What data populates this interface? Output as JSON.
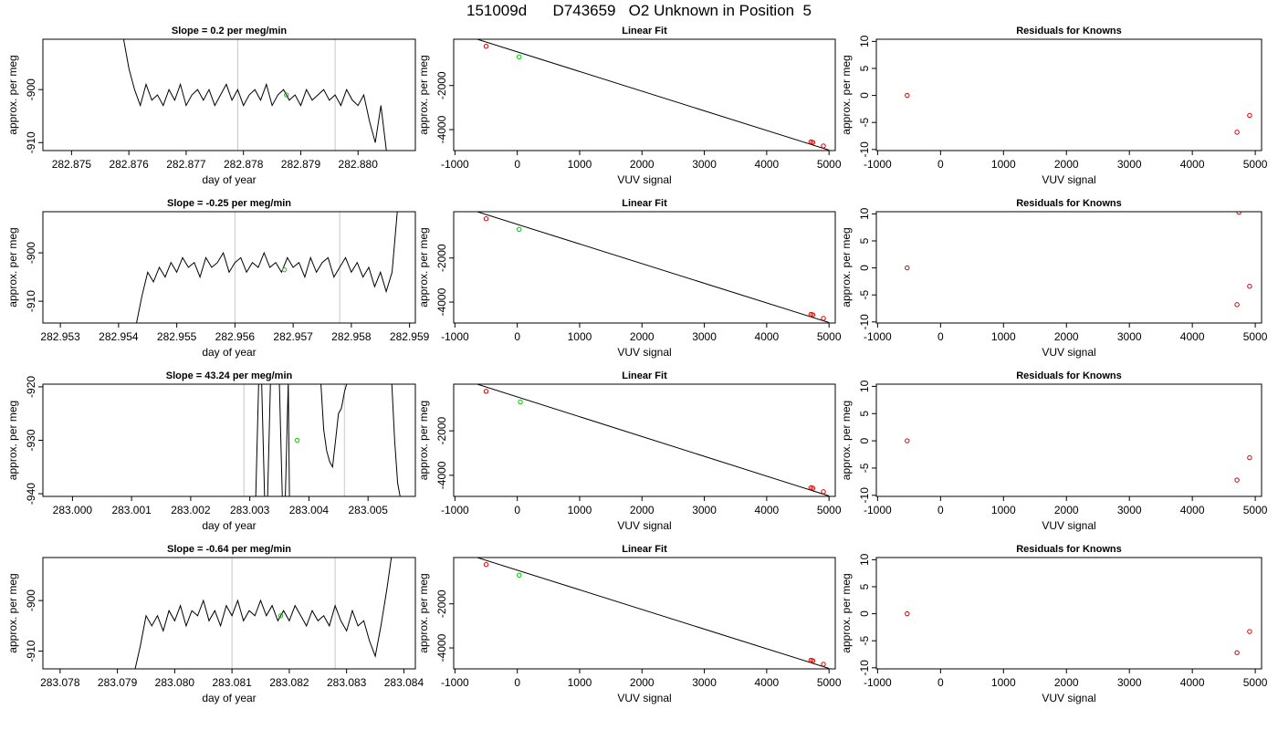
{
  "page": {
    "title": "151009d      D743659   O2 Unknown in Position  5"
  },
  "chart_data": [
    {
      "type": "line",
      "title": "Slope =  0.2  per meg/min",
      "xlabel": "day of year",
      "ylabel": "approx. per meg",
      "xlim": [
        282.8745,
        282.881
      ],
      "ylim": [
        -911.5,
        -890.5
      ],
      "xticks": [
        282.875,
        282.876,
        282.877,
        282.878,
        282.879,
        282.88
      ],
      "xtick_labels": [
        "282.875",
        "282.876",
        "282.877",
        "282.878",
        "282.879",
        "282.880"
      ],
      "yticks": [
        -900,
        -910
      ],
      "ytick_labels": [
        "-900",
        "-910"
      ],
      "vlines": [
        282.8779,
        282.8796
      ],
      "series": [
        {
          "x": [
            282.8759,
            282.876,
            282.8761,
            282.8762,
            282.8763,
            282.8764,
            282.8765,
            282.8766,
            282.8767,
            282.8768,
            282.8769,
            282.877,
            282.8771,
            282.8772,
            282.8773,
            282.8774,
            282.8775,
            282.8776,
            282.8777,
            282.8778,
            282.8779,
            282.878,
            282.8781,
            282.8782,
            282.8783,
            282.8784,
            282.8785,
            282.8786,
            282.8787,
            282.8788,
            282.8789,
            282.879,
            282.8791,
            282.8792,
            282.8793,
            282.8794,
            282.8795,
            282.8796,
            282.8797,
            282.8798,
            282.8799,
            282.88,
            282.8801,
            282.8802,
            282.8803,
            282.8804,
            282.8805
          ],
          "y": [
            -890,
            -896,
            -900,
            -903,
            -899,
            -902,
            -901,
            -903,
            -900,
            -902,
            -899,
            -903,
            -901,
            -900,
            -902,
            -900,
            -903,
            -901,
            -899,
            -902,
            -900,
            -903,
            -901,
            -900,
            -902,
            -899,
            -903,
            -901,
            -900,
            -902,
            -901,
            -903,
            -900,
            -902,
            -901,
            -900,
            -902,
            -901,
            -903,
            -900,
            -902,
            -903,
            -901,
            -906,
            -910,
            -903,
            -912
          ]
        }
      ],
      "points": [
        {
          "x": 282.87875,
          "y": -901,
          "color": "#00cc00"
        }
      ]
    },
    {
      "type": "scatter",
      "title": "Linear Fit",
      "xlabel": "VUV signal",
      "ylabel": "approx. per meg",
      "xlim": [
        -1020,
        5100
      ],
      "ylim": [
        -4950,
        100
      ],
      "xticks": [
        -1000,
        0,
        1000,
        2000,
        3000,
        4000,
        5000
      ],
      "xtick_labels": [
        "-1000",
        "0",
        "1000",
        "2000",
        "3000",
        "4000",
        "5000"
      ],
      "yticks": [
        -2000,
        -4000
      ],
      "ytick_labels": [
        "-2000",
        "-4000"
      ],
      "fit_line": [
        [
          -800,
          240
        ],
        [
          5000,
          -4930
        ]
      ],
      "points": [
        {
          "x": -500,
          "y": -220,
          "color": "#cc0000"
        },
        {
          "x": 30,
          "y": -700,
          "color": "#00cc00"
        },
        {
          "x": 4710,
          "y": -4560,
          "color": "#cc0000"
        },
        {
          "x": 4740,
          "y": -4580,
          "color": "#cc0000"
        },
        {
          "x": 4910,
          "y": -4740,
          "color": "#cc0000"
        }
      ]
    },
    {
      "type": "scatter",
      "title": "Residuals for Knowns",
      "xlabel": "VUV signal",
      "ylabel": "approx. per meg",
      "xlim": [
        -1020,
        5100
      ],
      "ylim": [
        -10.2,
        10.4
      ],
      "xticks": [
        -1000,
        0,
        1000,
        2000,
        3000,
        4000,
        5000
      ],
      "xtick_labels": [
        "-1000",
        "0",
        "1000",
        "2000",
        "3000",
        "4000",
        "5000"
      ],
      "yticks": [
        10,
        5,
        0,
        -5,
        -10
      ],
      "ytick_labels": [
        "10",
        "5",
        "0",
        "-5",
        "-10"
      ],
      "points": [
        {
          "x": -530,
          "y": 0,
          "color": "#cc0000"
        },
        {
          "x": 4710,
          "y": -6.8,
          "color": "#cc0000"
        },
        {
          "x": 4910,
          "y": -3.7,
          "color": "#cc0000"
        }
      ]
    },
    {
      "type": "line",
      "title": "Slope =  -0.25  per meg/min",
      "xlabel": "day of year",
      "ylabel": "approx. per meg",
      "xlim": [
        282.9527,
        282.9591
      ],
      "ylim": [
        -914.5,
        -891.5
      ],
      "xticks": [
        282.953,
        282.954,
        282.955,
        282.956,
        282.957,
        282.958,
        282.959
      ],
      "xtick_labels": [
        "282.953",
        "282.954",
        "282.955",
        "282.956",
        "282.957",
        "282.958",
        "282.959"
      ],
      "yticks": [
        -900,
        -910
      ],
      "ytick_labels": [
        "-900",
        "-910"
      ],
      "vlines": [
        282.956,
        282.9578
      ],
      "series": [
        {
          "x": [
            282.9543,
            282.9544,
            282.9545,
            282.9546,
            282.9547,
            282.9548,
            282.9549,
            282.955,
            282.9551,
            282.9552,
            282.9553,
            282.9554,
            282.9555,
            282.9556,
            282.9557,
            282.9558,
            282.9559,
            282.956,
            282.9561,
            282.9562,
            282.9563,
            282.9564,
            282.9565,
            282.9566,
            282.9567,
            282.9568,
            282.9569,
            282.957,
            282.9571,
            282.9572,
            282.9573,
            282.9574,
            282.9575,
            282.9576,
            282.9577,
            282.9578,
            282.9579,
            282.958,
            282.9581,
            282.9582,
            282.9583,
            282.9584,
            282.9585,
            282.9586,
            282.9587,
            282.9588
          ],
          "y": [
            -915,
            -909,
            -904,
            -906,
            -903,
            -905,
            -902,
            -904,
            -901,
            -903,
            -902,
            -905,
            -901,
            -903,
            -902,
            -900,
            -904,
            -902,
            -901,
            -904,
            -902,
            -903,
            -900,
            -903,
            -902,
            -904,
            -901,
            -903,
            -902,
            -905,
            -901,
            -904,
            -902,
            -901,
            -905,
            -903,
            -901,
            -904,
            -902,
            -905,
            -903,
            -907,
            -904,
            -908,
            -904,
            -890
          ]
        }
      ],
      "points": [
        {
          "x": 282.95685,
          "y": -903.5,
          "color": "#00cc00"
        }
      ]
    },
    {
      "type": "scatter",
      "title": "Linear Fit",
      "xlabel": "VUV signal",
      "ylabel": "approx. per meg",
      "xlim": [
        -1020,
        5100
      ],
      "ylim": [
        -4950,
        100
      ],
      "xticks": [
        -1000,
        0,
        1000,
        2000,
        3000,
        4000,
        5000
      ],
      "xtick_labels": [
        "-1000",
        "0",
        "1000",
        "2000",
        "3000",
        "4000",
        "5000"
      ],
      "yticks": [
        -2000,
        -4000
      ],
      "ytick_labels": [
        "-2000",
        "-4000"
      ],
      "fit_line": [
        [
          -800,
          240
        ],
        [
          5000,
          -4930
        ]
      ],
      "points": [
        {
          "x": -500,
          "y": -220,
          "color": "#cc0000"
        },
        {
          "x": 30,
          "y": -700,
          "color": "#00cc00"
        },
        {
          "x": 4710,
          "y": -4560,
          "color": "#cc0000"
        },
        {
          "x": 4740,
          "y": -4580,
          "color": "#cc0000"
        },
        {
          "x": 4910,
          "y": -4740,
          "color": "#cc0000"
        }
      ]
    },
    {
      "type": "scatter",
      "title": "Residuals for Knowns",
      "xlabel": "VUV signal",
      "ylabel": "approx. per meg",
      "xlim": [
        -1020,
        5100
      ],
      "ylim": [
        -10.2,
        10.4
      ],
      "xticks": [
        -1000,
        0,
        1000,
        2000,
        3000,
        4000,
        5000
      ],
      "xtick_labels": [
        "-1000",
        "0",
        "1000",
        "2000",
        "3000",
        "4000",
        "5000"
      ],
      "yticks": [
        10,
        5,
        0,
        -5,
        -10
      ],
      "ytick_labels": [
        "10",
        "5",
        "0",
        "-5",
        "-10"
      ],
      "points": [
        {
          "x": -530,
          "y": 0,
          "color": "#cc0000"
        },
        {
          "x": 4710,
          "y": -6.8,
          "color": "#cc0000"
        },
        {
          "x": 4740,
          "y": 10.3,
          "color": "#cc0000"
        },
        {
          "x": 4910,
          "y": -3.4,
          "color": "#cc0000"
        }
      ]
    },
    {
      "type": "line",
      "title": "Slope =  43.24  per meg/min",
      "xlabel": "day of year",
      "ylabel": "approx. per meg",
      "xlim": [
        282.9995,
        283.0058
      ],
      "ylim": [
        -940.5,
        -919.5
      ],
      "xticks": [
        283.0,
        283.001,
        283.002,
        283.003,
        283.004,
        283.005
      ],
      "xtick_labels": [
        "283.000",
        "283.001",
        "283.002",
        "283.003",
        "283.004",
        "283.005"
      ],
      "yticks": [
        -920,
        -930,
        -940
      ],
      "ytick_labels": [
        "-920",
        "-930",
        "-940"
      ],
      "vlines": [
        283.0029,
        283.0046
      ],
      "series": [
        {
          "x": [
            283.0031,
            283.00315,
            283.0032,
            283.00325,
            283.0033,
            283.00335,
            283.0035,
            283.00355,
            283.0036,
            283.00365,
            283.00367
          ],
          "y": [
            -941,
            -919,
            -919,
            -941,
            -941,
            -919,
            -919,
            -941,
            -941,
            -919,
            -941
          ]
        },
        {
          "x": [
            283.0042,
            283.00425,
            283.0043,
            283.00435,
            283.0044,
            283.00445,
            283.0045,
            283.00455,
            283.0046,
            283.00465
          ],
          "y": [
            -919,
            -928,
            -932,
            -934,
            -935,
            -930,
            -925,
            -924,
            -921,
            -919
          ]
        },
        {
          "x": [
            283.0054,
            283.00545,
            283.0055,
            283.00555
          ],
          "y": [
            -919,
            -930,
            -938,
            -941
          ]
        }
      ],
      "points": [
        {
          "x": 283.0038,
          "y": -930,
          "color": "#00cc00"
        }
      ]
    },
    {
      "type": "scatter",
      "title": "Linear Fit",
      "xlabel": "VUV signal",
      "ylabel": "approx. per meg",
      "xlim": [
        -1020,
        5100
      ],
      "ylim": [
        -4950,
        100
      ],
      "xticks": [
        -1000,
        0,
        1000,
        2000,
        3000,
        4000,
        5000
      ],
      "xtick_labels": [
        "-1000",
        "0",
        "1000",
        "2000",
        "3000",
        "4000",
        "5000"
      ],
      "yticks": [
        -2000,
        -4000
      ],
      "ytick_labels": [
        "-2000",
        "-4000"
      ],
      "fit_line": [
        [
          -800,
          240
        ],
        [
          5000,
          -4930
        ]
      ],
      "points": [
        {
          "x": -500,
          "y": -220,
          "color": "#cc0000"
        },
        {
          "x": 50,
          "y": -700,
          "color": "#00cc00"
        },
        {
          "x": 4710,
          "y": -4560,
          "color": "#cc0000"
        },
        {
          "x": 4740,
          "y": -4580,
          "color": "#cc0000"
        },
        {
          "x": 4910,
          "y": -4740,
          "color": "#cc0000"
        }
      ]
    },
    {
      "type": "scatter",
      "title": "Residuals for Knowns",
      "xlabel": "VUV signal",
      "ylabel": "approx. per meg",
      "xlim": [
        -1020,
        5100
      ],
      "ylim": [
        -10.2,
        10.4
      ],
      "xticks": [
        -1000,
        0,
        1000,
        2000,
        3000,
        4000,
        5000
      ],
      "xtick_labels": [
        "-1000",
        "0",
        "1000",
        "2000",
        "3000",
        "4000",
        "5000"
      ],
      "yticks": [
        10,
        5,
        0,
        -5,
        -10
      ],
      "ytick_labels": [
        "10",
        "5",
        "0",
        "-5",
        "-10"
      ],
      "points": [
        {
          "x": -530,
          "y": 0,
          "color": "#cc0000"
        },
        {
          "x": 4710,
          "y": -7.2,
          "color": "#cc0000"
        },
        {
          "x": 4910,
          "y": -3.1,
          "color": "#cc0000"
        }
      ]
    },
    {
      "type": "line",
      "title": "Slope =  -0.64  per meg/min",
      "xlabel": "day of year",
      "ylabel": "approx. per meg",
      "xlim": [
        283.0777,
        283.0842
      ],
      "ylim": [
        -913.5,
        -891.5
      ],
      "xticks": [
        283.078,
        283.079,
        283.08,
        283.081,
        283.082,
        283.083,
        283.084
      ],
      "xtick_labels": [
        "283.078",
        "283.079",
        "283.080",
        "283.081",
        "283.082",
        "283.083",
        "283.084"
      ],
      "yticks": [
        -900,
        -910
      ],
      "ytick_labels": [
        "-900",
        "-910"
      ],
      "vlines": [
        283.081,
        283.0828
      ],
      "series": [
        {
          "x": [
            283.0793,
            283.0794,
            283.0795,
            283.0796,
            283.0797,
            283.0798,
            283.0799,
            283.08,
            283.0801,
            283.0802,
            283.0803,
            283.0804,
            283.0805,
            283.0806,
            283.0807,
            283.0808,
            283.0809,
            283.081,
            283.0811,
            283.0812,
            283.0813,
            283.0814,
            283.0815,
            283.0816,
            283.0817,
            283.0818,
            283.0819,
            283.082,
            283.0821,
            283.0822,
            283.0823,
            283.0824,
            283.0825,
            283.0826,
            283.0827,
            283.0828,
            283.0829,
            283.083,
            283.0831,
            283.0832,
            283.0833,
            283.0834,
            283.0835,
            283.0836,
            283.0837,
            283.0838
          ],
          "y": [
            -914,
            -909,
            -903,
            -905,
            -903,
            -906,
            -902,
            -904,
            -901,
            -905,
            -902,
            -903,
            -900,
            -904,
            -902,
            -905,
            -901,
            -903,
            -900,
            -904,
            -902,
            -903,
            -900,
            -903,
            -901,
            -904,
            -902,
            -904,
            -901,
            -903,
            -905,
            -902,
            -904,
            -903,
            -905,
            -901,
            -904,
            -906,
            -902,
            -905,
            -904,
            -908,
            -911,
            -905,
            -898,
            -890
          ]
        }
      ],
      "points": [
        {
          "x": 283.08185,
          "y": -903,
          "color": "#00cc00"
        }
      ]
    },
    {
      "type": "scatter",
      "title": "Linear Fit",
      "xlabel": "VUV signal",
      "ylabel": "approx. per meg",
      "xlim": [
        -1020,
        5100
      ],
      "ylim": [
        -4950,
        100
      ],
      "xticks": [
        -1000,
        0,
        1000,
        2000,
        3000,
        4000,
        5000
      ],
      "xtick_labels": [
        "-1000",
        "0",
        "1000",
        "2000",
        "3000",
        "4000",
        "5000"
      ],
      "yticks": [
        -2000,
        -4000
      ],
      "ytick_labels": [
        "-2000",
        "-4000"
      ],
      "fit_line": [
        [
          -800,
          240
        ],
        [
          5000,
          -4930
        ]
      ],
      "points": [
        {
          "x": -500,
          "y": -220,
          "color": "#cc0000"
        },
        {
          "x": 30,
          "y": -700,
          "color": "#00cc00"
        },
        {
          "x": 4710,
          "y": -4560,
          "color": "#cc0000"
        },
        {
          "x": 4740,
          "y": -4580,
          "color": "#cc0000"
        },
        {
          "x": 4910,
          "y": -4740,
          "color": "#cc0000"
        }
      ]
    },
    {
      "type": "scatter",
      "title": "Residuals for Knowns",
      "xlabel": "VUV signal",
      "ylabel": "approx. per meg",
      "xlim": [
        -1020,
        5100
      ],
      "ylim": [
        -10.2,
        10.4
      ],
      "xticks": [
        -1000,
        0,
        1000,
        2000,
        3000,
        4000,
        5000
      ],
      "xtick_labels": [
        "-1000",
        "0",
        "1000",
        "2000",
        "3000",
        "4000",
        "5000"
      ],
      "yticks": [
        10,
        5,
        0,
        -5,
        -10
      ],
      "ytick_labels": [
        "10",
        "5",
        "0",
        "-5",
        "-10"
      ],
      "points": [
        {
          "x": -530,
          "y": 0,
          "color": "#cc0000"
        },
        {
          "x": 4710,
          "y": -7.2,
          "color": "#cc0000"
        },
        {
          "x": 4910,
          "y": -3.3,
          "color": "#cc0000"
        }
      ]
    }
  ]
}
